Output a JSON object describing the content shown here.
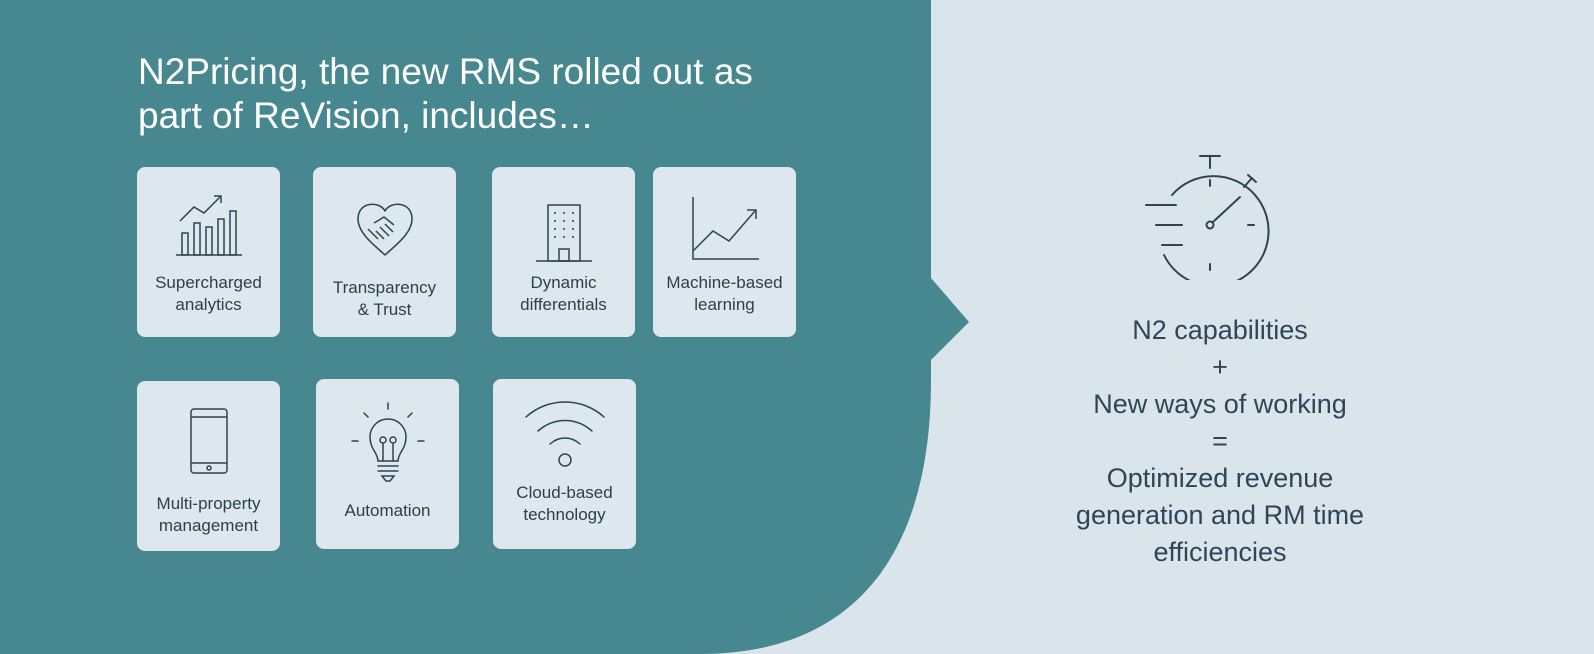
{
  "title_lines": [
    "N2Pricing, the new RMS rolled out as",
    "part of ReVision, includes…"
  ],
  "colors": {
    "teal": "#47878f",
    "background": "#d9e4eb",
    "tile": "#dce7ee",
    "icon_stroke": "#2e4453",
    "text_dark": "#2f4657"
  },
  "features": [
    {
      "icon": "bar-chart-growth-icon",
      "lines": [
        "Supercharged",
        "analytics"
      ]
    },
    {
      "icon": "heart-handshake-icon",
      "lines": [
        "Transparency",
        "& Trust"
      ]
    },
    {
      "icon": "building-icon",
      "lines": [
        "Dynamic",
        "differentials"
      ]
    },
    {
      "icon": "line-chart-icon",
      "lines": [
        "Machine-based",
        "learning"
      ]
    },
    {
      "icon": "mobile-phone-icon",
      "lines": [
        "Multi-property",
        "management"
      ]
    },
    {
      "icon": "lightbulb-icon",
      "lines": [
        "Automation"
      ]
    },
    {
      "icon": "wifi-icon",
      "lines": [
        "Cloud-based",
        "technology"
      ]
    }
  ],
  "result": {
    "icon": "stopwatch-icon",
    "lines": [
      "N2 capabilities",
      "+",
      "New ways of working",
      "=",
      "Optimized revenue",
      "generation and RM time",
      "efficiencies"
    ]
  }
}
